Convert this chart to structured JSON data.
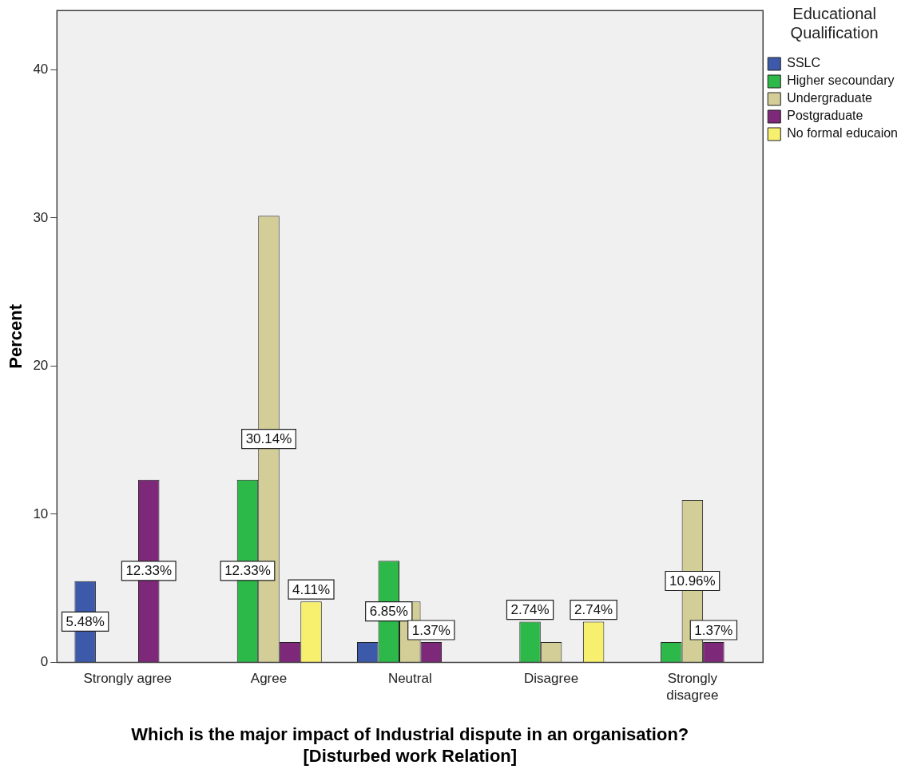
{
  "chart_data": {
    "type": "bar",
    "xlabel": "Which is the major impact of Industrial dispute in an organisation? [Disturbed work Relation]",
    "ylabel": "Percent",
    "legend_title": "Educational Qualification",
    "categories": [
      "Strongly agree",
      "Agree",
      "Neutral",
      "Disagree",
      "Strongly disagree"
    ],
    "series": [
      {
        "name": "SSLC",
        "color": "#3d5aaa",
        "values": [
          5.48,
          null,
          1.37,
          null,
          null
        ],
        "value_labels": [
          "5.48%",
          null,
          null,
          null,
          null
        ]
      },
      {
        "name": "Higher secoundary",
        "color": "#2db84a",
        "values": [
          null,
          12.33,
          6.85,
          2.74,
          1.37
        ],
        "value_labels": [
          null,
          "12.33%",
          "6.85%",
          "2.74%",
          null
        ]
      },
      {
        "name": "Undergraduate",
        "color": "#d3ce97",
        "values": [
          null,
          30.14,
          4.11,
          1.37,
          10.96
        ],
        "value_labels": [
          null,
          "30.14%",
          null,
          null,
          "10.96%"
        ]
      },
      {
        "name": "Postgraduate",
        "color": "#7d2878",
        "values": [
          12.33,
          1.37,
          1.37,
          null,
          1.37
        ],
        "value_labels": [
          "12.33%",
          null,
          "1.37%",
          null,
          "1.37%"
        ]
      },
      {
        "name": "No formal educaion",
        "color": "#f7f06e",
        "values": [
          null,
          4.11,
          null,
          2.74,
          null
        ],
        "value_labels": [
          null,
          "4.11%",
          null,
          "2.74%",
          null
        ]
      }
    ],
    "ylim": [
      0,
      44
    ],
    "yticks": [
      0,
      10,
      20,
      30,
      40
    ],
    "grid": false,
    "legend": "top right"
  }
}
